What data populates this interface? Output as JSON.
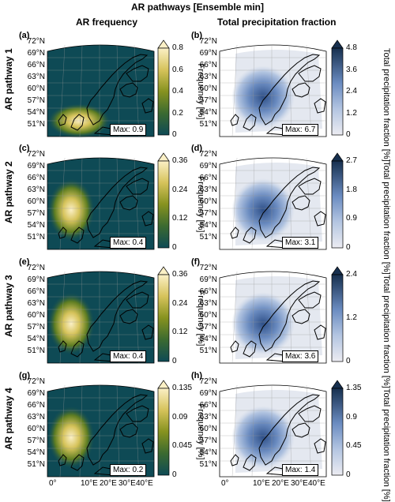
{
  "title": "AR pathways [Ensemble min]",
  "column_titles": {
    "left": "AR frequency",
    "right": "Total precipitation fraction"
  },
  "row_labels": [
    "AR pathway 1",
    "AR pathway 2",
    "AR pathway 3",
    "AR pathway 4"
  ],
  "lat_ticks": [
    "72°N",
    "69°N",
    "66°N",
    "63°N",
    "60°N",
    "57°N",
    "54°N",
    "51°N"
  ],
  "lon_ticks": [
    "0°",
    "10°E",
    "20°E",
    "30°E",
    "40°E"
  ],
  "panels": [
    {
      "letter": "(a)",
      "max": "Max: 0.9",
      "cb_ticks": [
        "0.8",
        "0.6",
        "0.4",
        "0.2",
        "0"
      ],
      "cb_label": "Frequency [%]"
    },
    {
      "letter": "(b)",
      "max": "Max: 6.7",
      "cb_ticks": [
        "4.8",
        "3.6",
        "2.4",
        "1.2",
        "0"
      ],
      "cb_label": "Total precipitation fraction [%]"
    },
    {
      "letter": "(c)",
      "max": "Max: 0.4",
      "cb_ticks": [
        "0.36",
        "0.24",
        "0.12",
        "0"
      ],
      "cb_label": "Frequency [%]"
    },
    {
      "letter": "(d)",
      "max": "Max: 3.1",
      "cb_ticks": [
        "2.7",
        "1.8",
        "0.9",
        "0"
      ],
      "cb_label": "Total precipitation fraction [%]"
    },
    {
      "letter": "(e)",
      "max": "Max: 0.4",
      "cb_ticks": [
        "0.36",
        "0.24",
        "0.12",
        "0"
      ],
      "cb_label": "Frequency [%]"
    },
    {
      "letter": "(f)",
      "max": "Max: 3.6",
      "cb_ticks": [
        "2.4",
        "1.2",
        "0"
      ],
      "cb_label": "Total precipitation fraction [%]"
    },
    {
      "letter": "(g)",
      "max": "Max: 0.2",
      "cb_ticks": [
        "0.135",
        "0.09",
        "0.045",
        "0"
      ],
      "cb_label": "Frequency [%]"
    },
    {
      "letter": "(h)",
      "max": "Max: 1.4",
      "cb_ticks": [
        "1.35",
        "0.9",
        "0.45",
        "0"
      ],
      "cb_label": "Total precipitation fraction [%]"
    }
  ],
  "colors": {
    "freq_ramp": [
      "#0e4a55",
      "#1f5a4a",
      "#3b6a30",
      "#5e7d22",
      "#86921f",
      "#b1a92f",
      "#d6c35b",
      "#f1dd98",
      "#fbf0c6"
    ],
    "precip_ramp": [
      "#ececf2",
      "#d2dbea",
      "#b3c5e1",
      "#8fa8d2",
      "#6a8bc0",
      "#4a6ea9",
      "#2f5088",
      "#17304f"
    ],
    "coast": "#000000"
  }
}
